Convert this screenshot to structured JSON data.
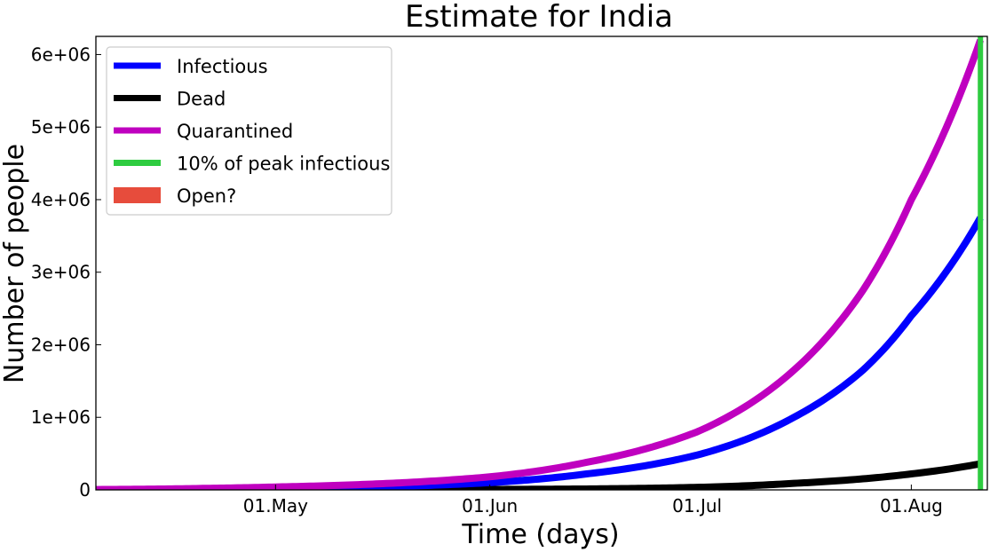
{
  "chart_data": {
    "type": "line",
    "title": "Estimate for India",
    "xlabel": "Time (days)",
    "ylabel": "Number of people",
    "x_range": [
      "2020-04-05",
      "2020-08-12"
    ],
    "xlim_days": [
      0,
      129
    ],
    "ylim": [
      0,
      6250000
    ],
    "x_ticks": [
      {
        "label": "01.May",
        "date": "2020-05-01"
      },
      {
        "label": "01.Jun",
        "date": "2020-06-01"
      },
      {
        "label": "01.Jul",
        "date": "2020-07-01"
      },
      {
        "label": "01.Aug",
        "date": "2020-08-01"
      }
    ],
    "y_ticks": [
      {
        "label": "0",
        "value": 0
      },
      {
        "label": "1e+06",
        "value": 1000000
      },
      {
        "label": "2e+06",
        "value": 2000000
      },
      {
        "label": "3e+06",
        "value": 3000000
      },
      {
        "label": "4e+06",
        "value": 4000000
      },
      {
        "label": "5e+06",
        "value": 5000000
      },
      {
        "label": "6e+06",
        "value": 6000000
      }
    ],
    "grid": false,
    "legend_position": "top-left",
    "series": [
      {
        "name": "Infectious",
        "color": "#0000ff",
        "dates": [
          "2020-04-05",
          "2020-04-20",
          "2020-05-01",
          "2020-05-15",
          "2020-06-01",
          "2020-06-15",
          "2020-07-01",
          "2020-07-15",
          "2020-07-25",
          "2020-08-01",
          "2020-08-11"
        ],
        "values": [
          2000,
          8000,
          18000,
          40000,
          100000,
          220000,
          480000,
          1000000,
          1650000,
          2400000,
          3750000
        ]
      },
      {
        "name": "Dead",
        "color": "#000000",
        "dates": [
          "2020-04-05",
          "2020-05-15",
          "2020-06-01",
          "2020-06-15",
          "2020-07-01",
          "2020-07-15",
          "2020-08-01",
          "2020-08-11"
        ],
        "values": [
          0,
          2000,
          6000,
          13000,
          35000,
          90000,
          220000,
          360000
        ]
      },
      {
        "name": "Quarantined",
        "color": "#bf00bf",
        "dates": [
          "2020-04-05",
          "2020-04-20",
          "2020-05-01",
          "2020-05-15",
          "2020-06-01",
          "2020-06-15",
          "2020-07-01",
          "2020-07-15",
          "2020-07-25",
          "2020-08-01",
          "2020-08-11"
        ],
        "values": [
          5000,
          20000,
          40000,
          80000,
          180000,
          380000,
          800000,
          1650000,
          2750000,
          4000000,
          6200000
        ]
      },
      {
        "name": "10% of peak infectious",
        "color": "#2ecc40",
        "type": "vertical-line",
        "date": "2020-08-11"
      },
      {
        "name": "Open?",
        "color": "#e74c3c",
        "type": "shaded-region",
        "visible_in_plot": false
      }
    ]
  }
}
